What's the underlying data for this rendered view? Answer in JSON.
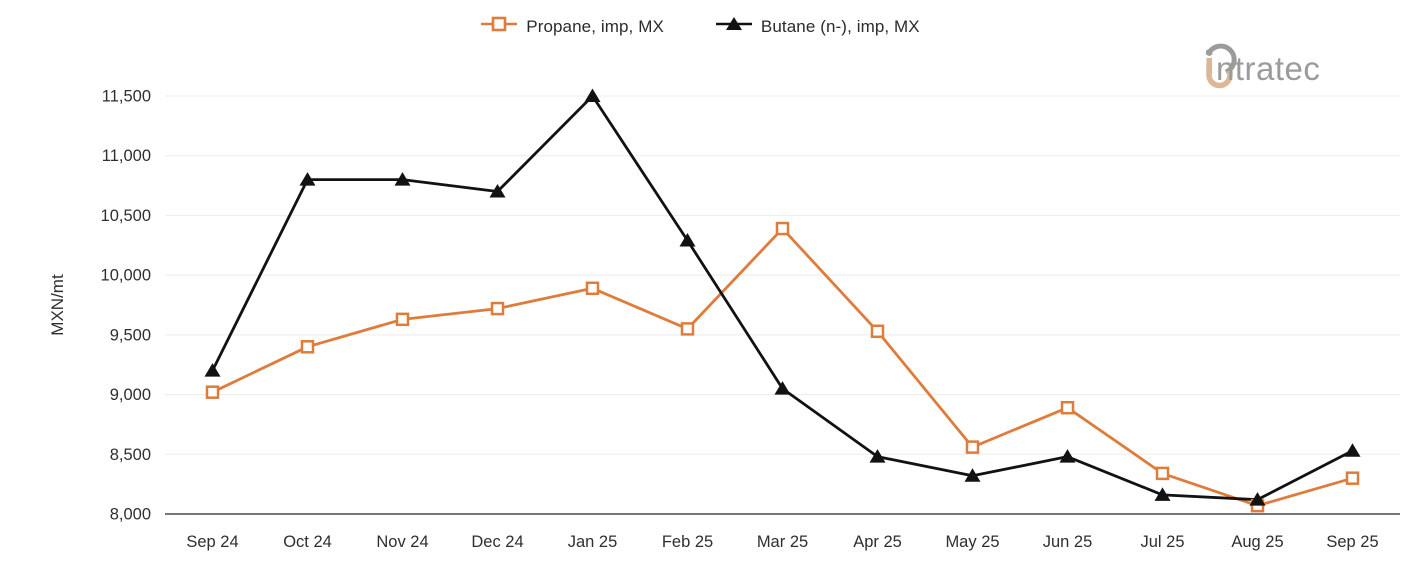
{
  "logo": {
    "text": "ntratec",
    "full_name": "intratec",
    "gray": "#9b9b9b",
    "tan": "#dcb795"
  },
  "colors": {
    "grid": "#ececec",
    "axis_line": "#76767a",
    "tick_label": "#2f2f2f",
    "propane_orange": "#de7c3c",
    "butane_black": "#121212"
  },
  "chart_data": {
    "type": "line",
    "title": "",
    "xlabel": "",
    "ylabel": "MXN/mt",
    "ylim": [
      8000,
      11500
    ],
    "ytick_step": 500,
    "grid": "horizontal-only",
    "legend_position": "top-center",
    "categories": [
      "Sep 24",
      "Oct 24",
      "Nov 24",
      "Dec 24",
      "Jan 25",
      "Feb 25",
      "Mar 25",
      "Apr 25",
      "May 25",
      "Jun 25",
      "Jul 25",
      "Aug 25",
      "Sep 25"
    ],
    "series": [
      {
        "name": "Propane, imp, MX",
        "color": "#de7c3c",
        "marker": "square-open",
        "values": [
          9020,
          9400,
          9630,
          9720,
          9890,
          9550,
          10390,
          9530,
          8560,
          8890,
          8340,
          8070,
          8300
        ]
      },
      {
        "name": "Butane (n-), imp, MX",
        "color": "#121212",
        "marker": "triangle-filled",
        "values": [
          9200,
          10800,
          10800,
          10700,
          11500,
          10290,
          9050,
          8480,
          8320,
          8480,
          8160,
          8120,
          8530
        ]
      }
    ]
  }
}
